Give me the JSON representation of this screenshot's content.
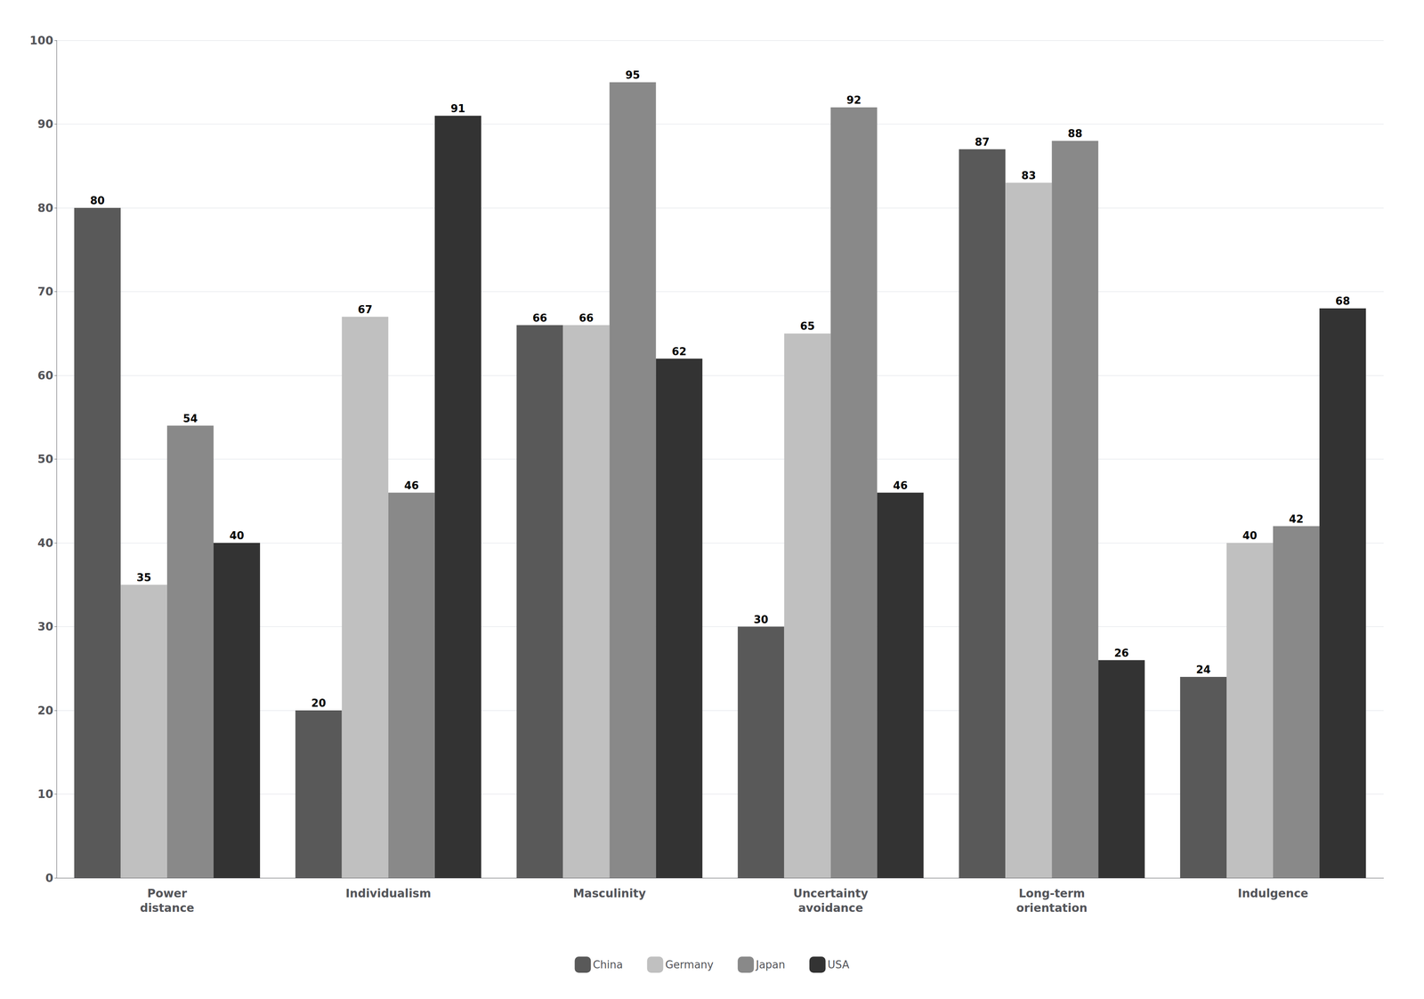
{
  "chart_data": {
    "type": "bar",
    "categories": [
      "Power\ndistance",
      "Individualism",
      "Masculinity",
      "Uncertainty\navoidance",
      "Long-term\norientation",
      "Indulgence"
    ],
    "series": [
      {
        "name": "China",
        "color": "#595959",
        "values": [
          80,
          20,
          66,
          30,
          87,
          24
        ]
      },
      {
        "name": "Germany",
        "color": "#c0c0c0",
        "values": [
          35,
          67,
          66,
          65,
          83,
          40
        ]
      },
      {
        "name": "Japan",
        "color": "#898989",
        "values": [
          54,
          46,
          95,
          92,
          88,
          42
        ]
      },
      {
        "name": "USA",
        "color": "#333333",
        "values": [
          40,
          91,
          62,
          46,
          26,
          68
        ]
      }
    ],
    "ylim": [
      0,
      100
    ],
    "yticks": [
      0,
      10,
      20,
      30,
      40,
      50,
      60,
      70,
      80,
      90,
      100
    ],
    "grid": true,
    "legend": "bottom",
    "data_labels": true
  }
}
